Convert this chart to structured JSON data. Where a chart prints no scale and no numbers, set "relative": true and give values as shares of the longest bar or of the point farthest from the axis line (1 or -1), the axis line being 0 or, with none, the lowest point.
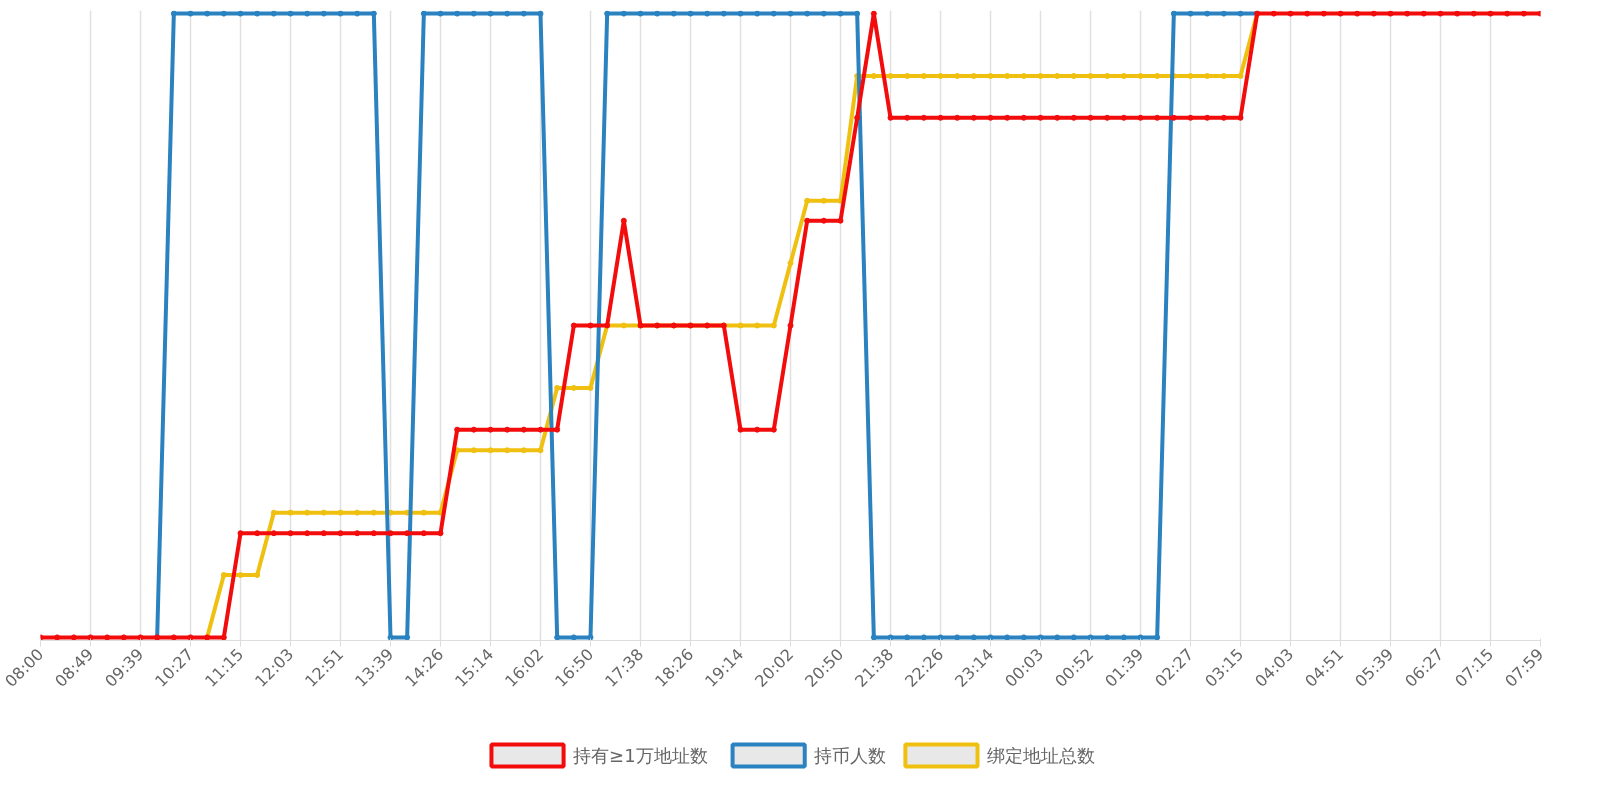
{
  "chart_data": {
    "type": "line",
    "relative": true,
    "grid": "x",
    "legend": "bottom",
    "marker": "circle",
    "line_style": "solid",
    "categories": [
      "08:00",
      null,
      null,
      "08:49",
      null,
      null,
      "09:39",
      null,
      null,
      "10:27",
      null,
      null,
      "11:15",
      null,
      null,
      "12:03",
      null,
      null,
      "12:51",
      null,
      null,
      "13:39",
      null,
      null,
      "14:26",
      null,
      null,
      "15:14",
      null,
      null,
      "16:02",
      null,
      null,
      "16:50",
      null,
      null,
      "17:38",
      null,
      null,
      "18:26",
      null,
      null,
      "19:14",
      null,
      null,
      "20:02",
      null,
      null,
      "20:50",
      null,
      null,
      "21:38",
      null,
      null,
      "22:26",
      null,
      null,
      "23:14",
      null,
      null,
      "00:03",
      null,
      null,
      "00:52",
      null,
      null,
      "01:39",
      null,
      null,
      "02:27",
      null,
      null,
      "03:15",
      null,
      null,
      "04:03",
      null,
      null,
      "04:51",
      null,
      null,
      "05:39",
      null,
      null,
      "06:27",
      null,
      null,
      "07:15",
      null,
      null,
      "07:59"
    ],
    "series": [
      {
        "name": "持有≥1万地址数",
        "color": "#f20c0c",
        "values": [
          0,
          0,
          0,
          0,
          0,
          0,
          0,
          0,
          0,
          0,
          0,
          0,
          0.167,
          0.167,
          0.167,
          0.167,
          0.167,
          0.167,
          0.167,
          0.167,
          0.167,
          0.167,
          0.167,
          0.167,
          0.167,
          0.333,
          0.333,
          0.333,
          0.333,
          0.333,
          0.333,
          0.333,
          0.5,
          0.5,
          0.5,
          0.668,
          0.5,
          0.5,
          0.5,
          0.5,
          0.5,
          0.5,
          0.333,
          0.333,
          0.333,
          0.5,
          0.668,
          0.668,
          0.668,
          0.833,
          1,
          0.833,
          0.833,
          0.833,
          0.833,
          0.833,
          0.833,
          0.833,
          0.833,
          0.833,
          0.833,
          0.833,
          0.833,
          0.833,
          0.833,
          0.833,
          0.833,
          0.833,
          0.833,
          0.833,
          0.833,
          0.833,
          0.833,
          1,
          1,
          1,
          1,
          1,
          1,
          1,
          1,
          1,
          1,
          1,
          1,
          1,
          1,
          1,
          1,
          1,
          1
        ]
      },
      {
        "name": "持币人数",
        "color": "#2a82c0",
        "values": [
          null,
          null,
          null,
          null,
          null,
          null,
          null,
          0,
          1,
          1,
          1,
          1,
          1,
          1,
          1,
          1,
          1,
          1,
          1,
          1,
          1,
          0,
          0,
          1,
          1,
          1,
          1,
          1,
          1,
          1,
          1,
          0,
          0,
          0,
          1,
          1,
          1,
          1,
          1,
          1,
          1,
          1,
          1,
          1,
          1,
          1,
          1,
          1,
          1,
          1,
          0,
          0,
          0,
          0,
          0,
          0,
          0,
          0,
          0,
          0,
          0,
          0,
          0,
          0,
          0,
          0,
          0,
          0,
          1,
          1,
          1,
          1,
          1,
          1,
          null,
          null,
          null,
          null,
          null,
          null,
          null,
          null,
          null,
          null,
          null,
          null,
          null,
          null,
          null,
          null,
          null
        ]
      },
      {
        "name": "绑定地址总数",
        "color": "#f0c010",
        "values": [
          null,
          null,
          null,
          null,
          null,
          null,
          null,
          null,
          null,
          null,
          0,
          0.1,
          0.1,
          0.1,
          0.2,
          0.2,
          0.2,
          0.2,
          0.2,
          0.2,
          0.2,
          0.2,
          0.2,
          0.2,
          0.2,
          0.3,
          0.3,
          0.3,
          0.3,
          0.3,
          0.3,
          0.4,
          0.4,
          0.4,
          0.5,
          0.5,
          0.5,
          0.5,
          0.5,
          0.5,
          0.5,
          0.5,
          0.5,
          0.5,
          0.5,
          0.6,
          0.7,
          0.7,
          0.7,
          0.9,
          0.9,
          0.9,
          0.9,
          0.9,
          0.9,
          0.9,
          0.9,
          0.9,
          0.9,
          0.9,
          0.9,
          0.9,
          0.9,
          0.9,
          0.9,
          0.9,
          0.9,
          0.9,
          0.9,
          0.9,
          0.9,
          0.9,
          0.9,
          1,
          null,
          null,
          null,
          null,
          null,
          null,
          null,
          null,
          null,
          null,
          null,
          null,
          null,
          null,
          null,
          null,
          null
        ]
      }
    ]
  }
}
